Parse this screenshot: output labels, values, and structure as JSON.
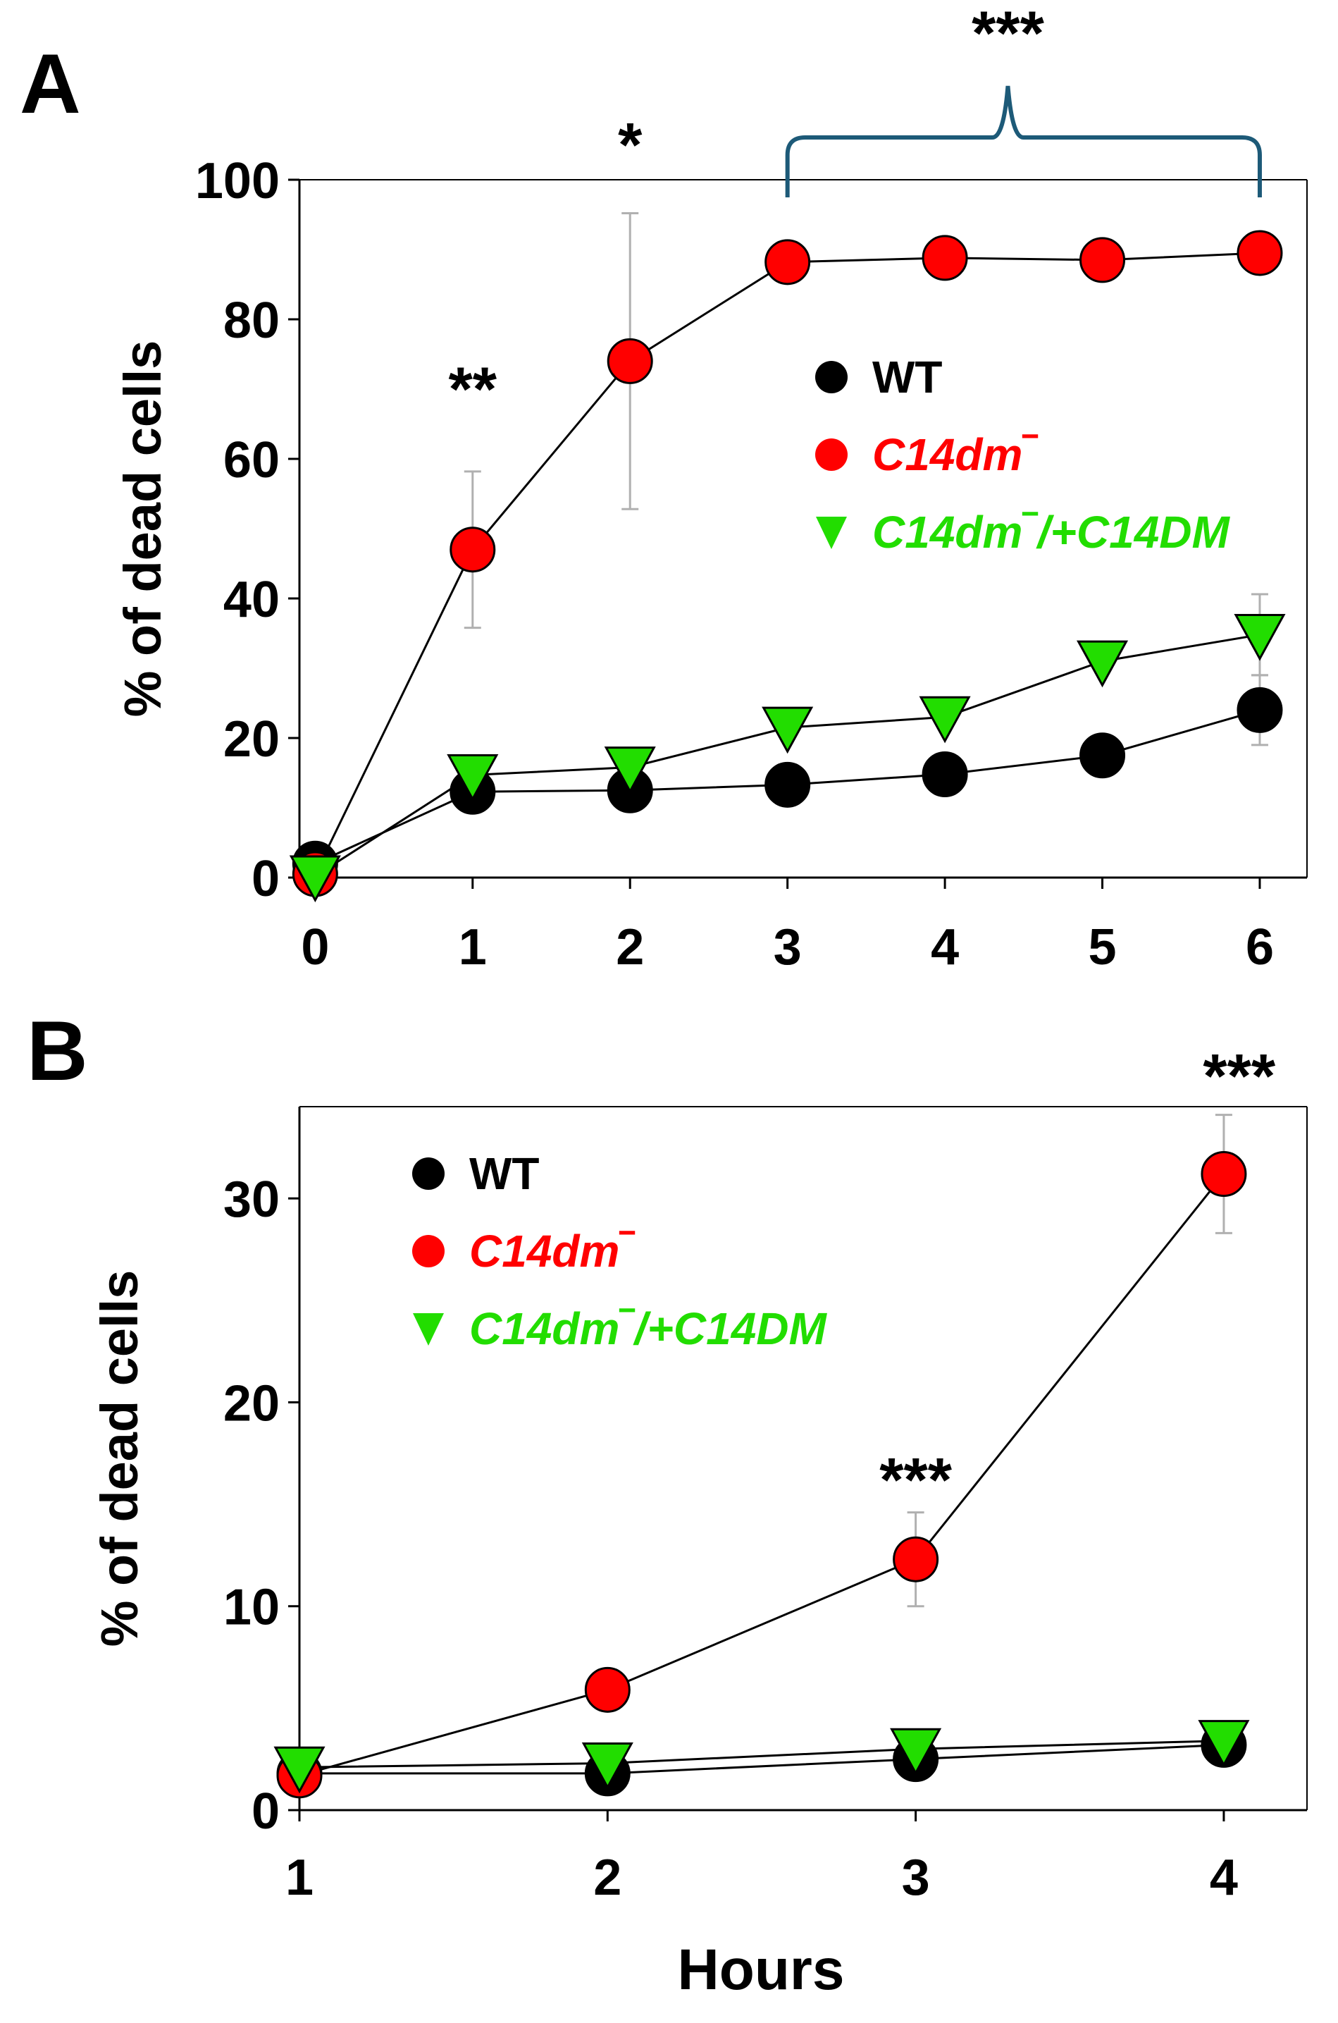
{
  "chart_data": [
    {
      "panel": "A",
      "type": "line",
      "title": "",
      "xlabel": "",
      "ylabel": "% of dead cells",
      "x": [
        0,
        1,
        2,
        3,
        4,
        5,
        6
      ],
      "xticks": [
        "0",
        "1",
        "2",
        "3",
        "4",
        "5",
        "6"
      ],
      "yticks": [
        "0",
        "20",
        "40",
        "60",
        "80",
        "100"
      ],
      "xlim": [
        -0.1,
        6.3
      ],
      "ylim": [
        0,
        100
      ],
      "series": [
        {
          "name": "WT",
          "marker": "circle",
          "color": "#000000",
          "values": [
            2.0,
            12.3,
            12.5,
            13.3,
            14.8,
            17.5,
            24.0
          ],
          "errors": [
            0,
            0,
            0,
            0,
            0,
            0,
            5.0
          ]
        },
        {
          "name": "C14dm‾",
          "marker": "circle",
          "color": "#ff0000",
          "values": [
            0.5,
            47.0,
            74.0,
            88.2,
            88.8,
            88.5,
            89.5
          ],
          "errors": [
            0,
            11.2,
            21.2,
            0,
            0,
            0,
            0
          ]
        },
        {
          "name": "C14dm‾/+C14DM",
          "marker": "triangle-down",
          "color": "#22dd00",
          "values": [
            0.2,
            14.7,
            15.8,
            21.5,
            23.0,
            31.0,
            34.8
          ],
          "errors": [
            0,
            0,
            2.5,
            0,
            0,
            0,
            5.8
          ]
        }
      ],
      "annotations": [
        {
          "text": "**",
          "x": 1,
          "y": 70
        },
        {
          "text": "*",
          "x": 2,
          "y": 105
        },
        {
          "text": "***",
          "x": 4.4,
          "y": 121,
          "bracket": [
            3,
            6
          ]
        }
      ],
      "legend": [
        "WT",
        "C14dm‾",
        "C14dm‾/+C14DM"
      ],
      "legend_position": "center-right"
    },
    {
      "panel": "B",
      "type": "line",
      "title": "",
      "xlabel": "Hours",
      "ylabel": "% of dead cells",
      "x": [
        1,
        2,
        3,
        4
      ],
      "xticks": [
        "1",
        "2",
        "3",
        "4"
      ],
      "yticks": [
        "0",
        "10",
        "20",
        "30"
      ],
      "xlim": [
        1,
        4.27
      ],
      "ylim": [
        0,
        34.5
      ],
      "series": [
        {
          "name": "WT",
          "marker": "circle",
          "color": "#000000",
          "values": [
            1.8,
            1.8,
            2.5,
            3.2
          ],
          "errors": [
            0,
            0,
            0,
            0
          ]
        },
        {
          "name": "C14dm‾",
          "marker": "circle",
          "color": "#ff0000",
          "values": [
            1.7,
            5.9,
            12.3,
            31.2
          ],
          "errors": [
            0,
            0,
            2.3,
            2.9
          ]
        },
        {
          "name": "C14dm‾/+C14DM",
          "marker": "triangle-down",
          "color": "#22dd00",
          "values": [
            2.1,
            2.3,
            3.0,
            3.4
          ],
          "errors": [
            0,
            0,
            0,
            0
          ]
        }
      ],
      "annotations": [
        {
          "text": "***",
          "x": 3,
          "y": 16.2
        },
        {
          "text": "***",
          "x": 4.05,
          "y": 36.0
        }
      ],
      "legend": [
        "WT",
        "C14dm‾",
        "C14dm‾/+C14DM"
      ],
      "legend_position": "top-left"
    }
  ],
  "colors": {
    "wt": "#000000",
    "mutant": "#ff0000",
    "rescue": "#22dd00",
    "bracket": "#1d5a78",
    "errorbar": "#b0b0b0"
  }
}
